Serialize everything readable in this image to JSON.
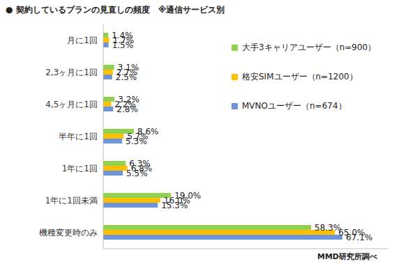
{
  "chart_data": {
    "type": "bar",
    "orientation": "horizontal",
    "title": "● 契約しているプランの見直しの頻度　※通信サービス別",
    "annotations": [
      "MMD研究所調べ"
    ],
    "categories": [
      "月に1回",
      "2,3ヶ月に1回",
      "4,5ヶ月に1回",
      "半年に1回",
      "1年に1回",
      "1年に1回未満",
      "機種変更時のみ"
    ],
    "series": [
      {
        "name": "大手3キャリアユーザー（n=900）",
        "color": "#92d050",
        "values": [
          1.4,
          3.1,
          3.2,
          8.6,
          6.3,
          19.0,
          58.3
        ],
        "value_labels": [
          "1.4%",
          "3.1%",
          "3.2%",
          "8.6%",
          "6.3%",
          "19.0%",
          "58.3%"
        ]
      },
      {
        "name": "格安SIMユーザー（n=1200）",
        "color": "#ffc000",
        "values": [
          1.7,
          2.7,
          2.2,
          5.7,
          6.8,
          16.0,
          65.0
        ],
        "value_labels": [
          "1.7%",
          "2.7%",
          "2.2%",
          "5.7%",
          "6.8%",
          "16.0%",
          "65.0%"
        ]
      },
      {
        "name": "MVNOユーザー（n=674）",
        "color": "#6f94d8",
        "values": [
          1.5,
          2.5,
          2.8,
          5.3,
          5.5,
          15.3,
          67.1
        ],
        "value_labels": [
          "1.5%",
          "2.5%",
          "2.8%",
          "5.3%",
          "5.5%",
          "15.3%",
          "67.1%"
        ]
      }
    ],
    "xlim": [
      0,
      80
    ],
    "legend": "right",
    "grid": false,
    "data_labels": true,
    "tick_labels": "y"
  }
}
